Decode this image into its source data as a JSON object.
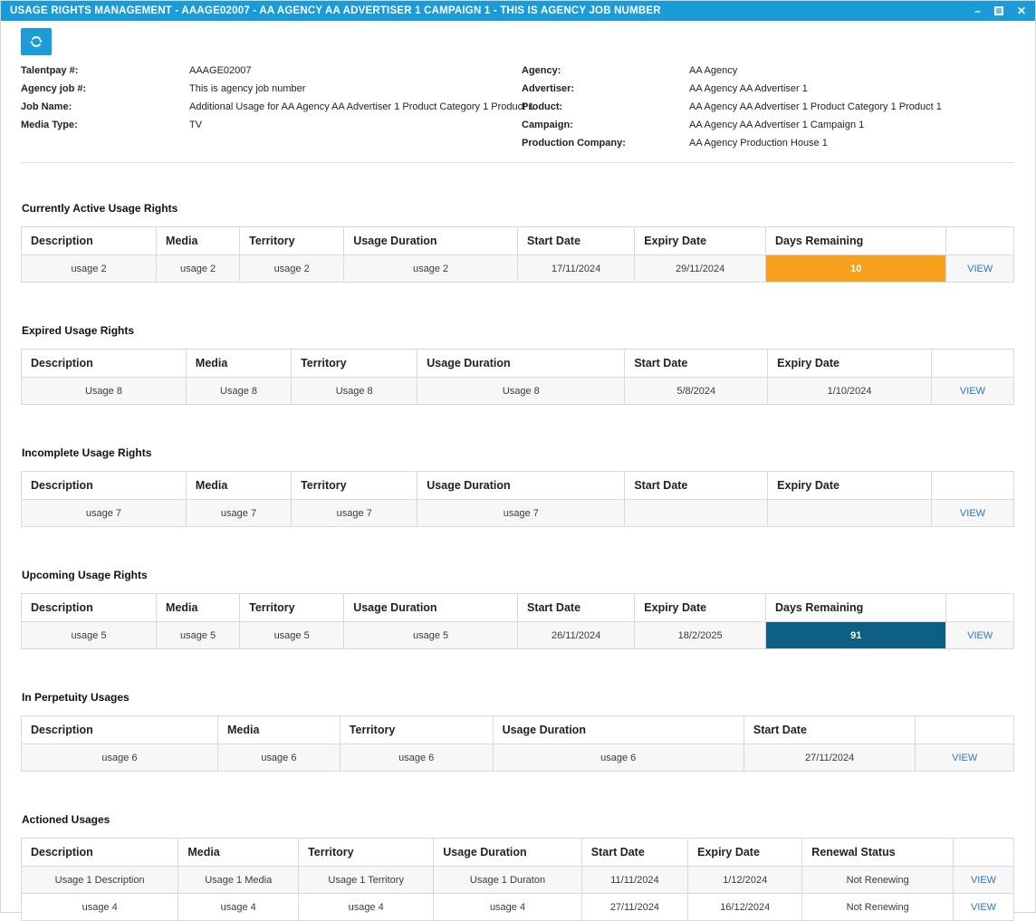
{
  "window": {
    "title": "USAGE RIGHTS MANAGEMENT - AAAGE02007 - AA AGENCY AA ADVERTISER 1 CAMPAIGN 1 - THIS IS AGENCY JOB NUMBER",
    "controls": {
      "minimize": "–",
      "close": "✕"
    }
  },
  "toolbar": {
    "refresh_icon": "refresh"
  },
  "colors": {
    "title_bar": "#1B9CD8",
    "badge_orange": "#F7A01E",
    "badge_teal": "#0D5F84",
    "view_link": "#2C77C8"
  },
  "info": {
    "left": [
      {
        "label": "Talentpay #:",
        "value": "AAAGE02007"
      },
      {
        "label": "Agency job #:",
        "value": "This is agency job number"
      },
      {
        "label": "Job Name:",
        "value": "Additional Usage for AA Agency AA Advertiser 1 Product Category 1 Product 1"
      },
      {
        "label": "Media Type:",
        "value": "TV"
      }
    ],
    "right": [
      {
        "label": "Agency:",
        "value": "AA Agency"
      },
      {
        "label": "Advertiser:",
        "value": "AA Agency AA Advertiser 1"
      },
      {
        "label": "Product:",
        "value": "AA Agency AA Advertiser 1 Product Category 1 Product 1"
      },
      {
        "label": "Campaign:",
        "value": "AA Agency AA Advertiser 1 Campaign 1"
      },
      {
        "label": "Production Company:",
        "value": "AA Agency Production House 1"
      }
    ]
  },
  "sections": [
    {
      "title": "Currently Active Usage Rights",
      "columns": [
        "Description",
        "Media",
        "Territory",
        "Usage Duration",
        "Start Date",
        "Expiry Date",
        "Days Remaining",
        ""
      ],
      "rows": [
        [
          {
            "t": "usage 2"
          },
          {
            "t": "usage 2"
          },
          {
            "t": "usage 2"
          },
          {
            "t": "usage 2"
          },
          {
            "t": "17/11/2024"
          },
          {
            "t": "29/11/2024"
          },
          {
            "t": "10",
            "badge": "orange"
          },
          {
            "t": "VIEW",
            "link": true
          }
        ]
      ]
    },
    {
      "title": "Expired Usage Rights",
      "columns": [
        "Description",
        "Media",
        "Territory",
        "Usage Duration",
        "Start Date",
        "Expiry Date",
        ""
      ],
      "rows": [
        [
          {
            "t": "Usage 8"
          },
          {
            "t": "Usage 8"
          },
          {
            "t": "Usage 8"
          },
          {
            "t": "Usage 8"
          },
          {
            "t": "5/8/2024"
          },
          {
            "t": "1/10/2024"
          },
          {
            "t": "VIEW",
            "link": true
          }
        ]
      ]
    },
    {
      "title": "Incomplete Usage Rights",
      "columns": [
        "Description",
        "Media",
        "Territory",
        "Usage Duration",
        "Start Date",
        "Expiry Date",
        ""
      ],
      "rows": [
        [
          {
            "t": "usage 7"
          },
          {
            "t": "usage 7"
          },
          {
            "t": "usage 7"
          },
          {
            "t": "usage 7"
          },
          {
            "t": ""
          },
          {
            "t": ""
          },
          {
            "t": "VIEW",
            "link": true
          }
        ]
      ]
    },
    {
      "title": "Upcoming Usage Rights",
      "columns": [
        "Description",
        "Media",
        "Territory",
        "Usage Duration",
        "Start Date",
        "Expiry Date",
        "Days Remaining",
        ""
      ],
      "rows": [
        [
          {
            "t": "usage 5"
          },
          {
            "t": "usage 5"
          },
          {
            "t": "usage 5"
          },
          {
            "t": "usage 5"
          },
          {
            "t": "26/11/2024"
          },
          {
            "t": "18/2/2025"
          },
          {
            "t": "91",
            "badge": "teal"
          },
          {
            "t": "VIEW",
            "link": true
          }
        ]
      ]
    },
    {
      "title": "In Perpetuity Usages",
      "columns": [
        "Description",
        "Media",
        "Territory",
        "Usage Duration",
        "Start Date",
        ""
      ],
      "rows": [
        [
          {
            "t": "usage 6"
          },
          {
            "t": "usage 6"
          },
          {
            "t": "usage 6"
          },
          {
            "t": "usage 6"
          },
          {
            "t": "27/11/2024"
          },
          {
            "t": "VIEW",
            "link": true
          }
        ]
      ]
    },
    {
      "title": "Actioned Usages",
      "columns": [
        "Description",
        "Media",
        "Territory",
        "Usage Duration",
        "Start Date",
        "Expiry Date",
        "Renewal Status",
        ""
      ],
      "rows": [
        [
          {
            "t": "Usage 1 Description"
          },
          {
            "t": "Usage 1 Media"
          },
          {
            "t": "Usage 1 Territory"
          },
          {
            "t": "Usage 1 Duraton"
          },
          {
            "t": "11/11/2024"
          },
          {
            "t": "1/12/2024"
          },
          {
            "t": "Not Renewing"
          },
          {
            "t": "VIEW",
            "link": true
          }
        ],
        [
          {
            "t": "usage 4"
          },
          {
            "t": "usage 4"
          },
          {
            "t": "usage 4"
          },
          {
            "t": "usage 4"
          },
          {
            "t": "27/11/2024"
          },
          {
            "t": "16/12/2024"
          },
          {
            "t": "Not Renewing"
          },
          {
            "t": "VIEW",
            "link": true
          }
        ]
      ]
    }
  ]
}
